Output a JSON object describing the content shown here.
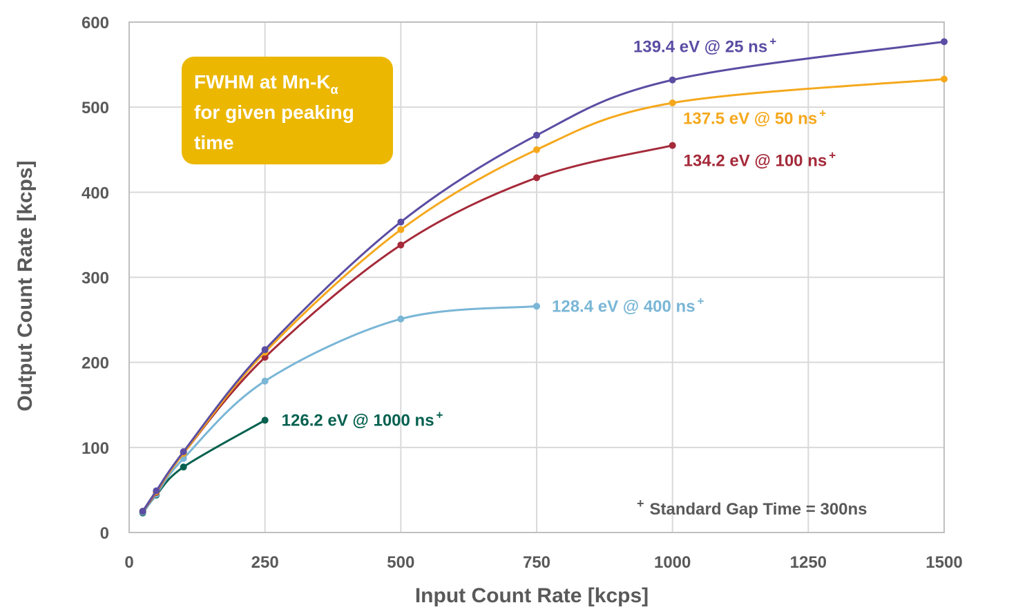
{
  "chart_data": {
    "type": "line",
    "xlabel": "Input Count Rate [kcps]",
    "ylabel": "Output Count Rate [kcps]",
    "xlim": [
      0,
      1500
    ],
    "ylim": [
      0,
      600
    ],
    "x_ticks": [
      0,
      250,
      500,
      750,
      1000,
      1250,
      1500
    ],
    "y_ticks": [
      0,
      100,
      200,
      300,
      400,
      500,
      600
    ],
    "grid": true,
    "callout": {
      "line1": "FWHM at Mn-K",
      "line1_subscript": "α",
      "line2": "for given peaking",
      "line3": "time",
      "color": "#EBB700"
    },
    "note": "Standard Gap Time = 300ns",
    "note_marker": "+",
    "series": [
      {
        "name": "139.4 eV @ 25 ns",
        "color": "#5B4DA3",
        "x": [
          25,
          50,
          100,
          250,
          500,
          750,
          1000,
          1500
        ],
        "y": [
          25,
          49,
          95,
          215,
          365,
          467,
          532,
          577
        ]
      },
      {
        "name": "137.5 eV @ 50 ns",
        "color": "#F5A81C",
        "x": [
          25,
          50,
          100,
          250,
          500,
          750,
          1000,
          1500
        ],
        "y": [
          25,
          48,
          93,
          212,
          356,
          450,
          505,
          533
        ]
      },
      {
        "name": "134.2 eV @ 100 ns",
        "color": "#A52A3A",
        "x": [
          25,
          50,
          100,
          250,
          500,
          750,
          1000
        ],
        "y": [
          25,
          47,
          93,
          206,
          338,
          417,
          455
        ]
      },
      {
        "name": "128.4 eV @ 400 ns",
        "color": "#7AB6D6",
        "x": [
          25,
          50,
          100,
          250,
          500,
          750
        ],
        "y": [
          24,
          45,
          87,
          178,
          251,
          266
        ]
      },
      {
        "name": "126.2 eV @ 1000 ns",
        "color": "#06614F",
        "x": [
          25,
          50,
          100,
          250
        ],
        "y": [
          23,
          44,
          77,
          132
        ]
      }
    ]
  }
}
